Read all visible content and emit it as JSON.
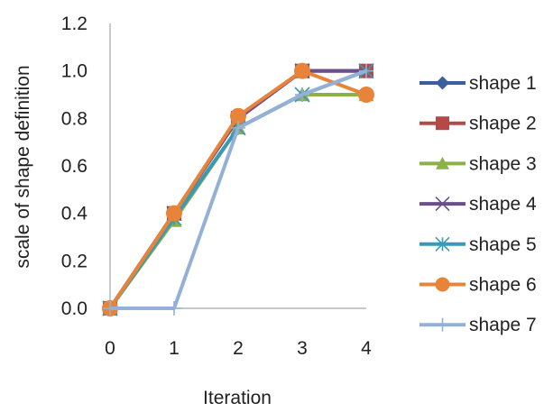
{
  "chart_data": {
    "type": "line",
    "x": [
      0,
      1,
      2,
      3,
      4
    ],
    "xlabel": "Iteration",
    "ylabel": "scale of shape definition",
    "ylim": [
      0,
      1.2
    ],
    "xlim": [
      0,
      4
    ],
    "x_ticks": [
      "0",
      "1",
      "2",
      "3",
      "4"
    ],
    "y_ticks": [
      "0.0",
      "0.2",
      "0.4",
      "0.6",
      "0.8",
      "1.0",
      "1.2"
    ],
    "grid": false,
    "legend_position": "right",
    "series": [
      {
        "name": "shape 1",
        "values": [
          0,
          0.4,
          0.8,
          1.0,
          1.0
        ],
        "color": "#3a5f9e",
        "marker": "diamond"
      },
      {
        "name": "shape 2",
        "values": [
          0,
          0.4,
          0.8,
          1.0,
          1.0
        ],
        "color": "#b34a48",
        "marker": "square"
      },
      {
        "name": "shape 3",
        "values": [
          0,
          0.37,
          0.76,
          0.9,
          0.9
        ],
        "color": "#8cb04a",
        "marker": "triangle"
      },
      {
        "name": "shape 4",
        "values": [
          0,
          0.4,
          0.8,
          1.0,
          1.0
        ],
        "color": "#6a4f8c",
        "marker": "x"
      },
      {
        "name": "shape 5",
        "values": [
          0,
          0.38,
          0.76,
          0.9,
          1.0
        ],
        "color": "#3a9ab5",
        "marker": "asterisk"
      },
      {
        "name": "shape 6",
        "values": [
          0,
          0.4,
          0.81,
          1.0,
          0.9
        ],
        "color": "#e8843a",
        "marker": "circle"
      },
      {
        "name": "shape 7",
        "values": [
          0,
          0,
          0.76,
          0.9,
          1.0
        ],
        "color": "#94b0d6",
        "marker": "plus"
      }
    ]
  }
}
